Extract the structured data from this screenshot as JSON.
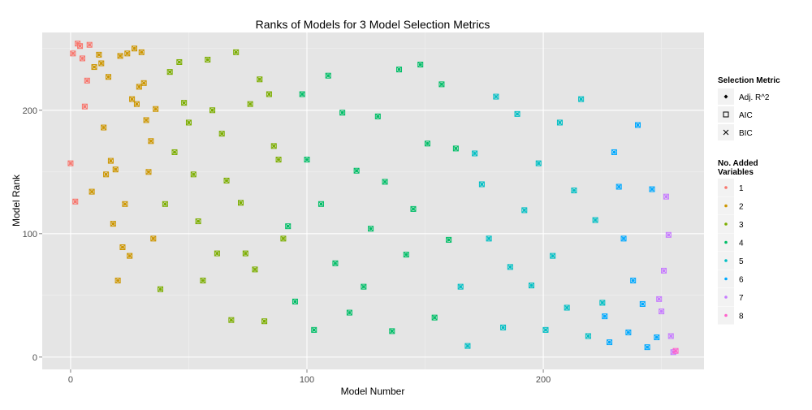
{
  "chart_data": {
    "type": "scatter",
    "title": "Ranks  of Models for 3 Model Selection Metrics",
    "xlabel": "Model Number",
    "ylabel": "Model Rank",
    "xlim": [
      -12,
      268
    ],
    "ylim": [
      -10,
      263
    ],
    "x_ticks": [
      0,
      100,
      200
    ],
    "y_ticks": [
      0,
      100,
      200
    ],
    "grid": true,
    "background": "#e5e5e5",
    "grid_color": "#ffffff",
    "legend_position": "right",
    "shape_legend": {
      "title": "Selection Metric",
      "items": [
        {
          "label": "Adj. R^2",
          "shape": "diamond"
        },
        {
          "label": "AIC",
          "shape": "square"
        },
        {
          "label": "BIC",
          "shape": "cross"
        }
      ]
    },
    "color_legend": {
      "title": "No. Added\nVariables",
      "items": [
        {
          "label": "1",
          "color": "#f8766d"
        },
        {
          "label": "2",
          "color": "#cd9600"
        },
        {
          "label": "3",
          "color": "#7cae00"
        },
        {
          "label": "4",
          "color": "#00be67"
        },
        {
          "label": "5",
          "color": "#00bfc4"
        },
        {
          "label": "6",
          "color": "#00a9ff"
        },
        {
          "label": "7",
          "color": "#c77cff"
        },
        {
          "label": "8",
          "color": "#ff61cc"
        }
      ]
    },
    "series": [
      {
        "group": "1",
        "x": [
          0,
          1,
          2,
          3,
          4,
          5,
          6,
          7,
          8
        ],
        "y": [
          157,
          246,
          126,
          254,
          252,
          242,
          203,
          224,
          253
        ]
      },
      {
        "group": "2",
        "x": [
          9,
          10,
          12,
          13,
          14,
          15,
          16,
          17,
          18,
          19,
          20,
          21,
          22,
          23,
          24,
          25,
          26,
          27,
          28,
          29,
          30,
          31,
          32,
          33,
          34,
          35,
          36
        ],
        "y": [
          134,
          235,
          245,
          238,
          186,
          148,
          227,
          159,
          108,
          152,
          62,
          244,
          89,
          124,
          246,
          82,
          209,
          250,
          205,
          219,
          247,
          222,
          192,
          150,
          175,
          96,
          201
        ]
      },
      {
        "group": "3",
        "x": [
          38,
          40,
          42,
          44,
          46,
          48,
          50,
          52,
          54,
          56,
          58,
          60,
          62,
          64,
          66,
          68,
          70,
          72,
          74,
          76,
          78,
          80,
          82,
          84,
          86,
          88,
          90
        ],
        "y": [
          55,
          124,
          231,
          166,
          239,
          206,
          190,
          148,
          110,
          62,
          241,
          200,
          84,
          181,
          143,
          30,
          247,
          125,
          84,
          205,
          71,
          225,
          29,
          213,
          171,
          160,
          96
        ]
      },
      {
        "group": "4",
        "x": [
          92,
          95,
          98,
          100,
          103,
          106,
          109,
          112,
          115,
          118,
          121,
          124,
          127,
          130,
          133,
          136,
          139,
          142,
          145,
          148,
          151,
          154,
          157,
          160,
          163
        ],
        "y": [
          106,
          45,
          213,
          160,
          22,
          124,
          228,
          76,
          198,
          36,
          151,
          57,
          104,
          195,
          142,
          21,
          233,
          83,
          120,
          237,
          173,
          32,
          221,
          95,
          169
        ]
      },
      {
        "group": "5",
        "x": [
          165,
          168,
          171,
          174,
          177,
          180,
          183,
          186,
          189,
          192,
          195,
          198,
          201,
          204,
          207,
          210,
          213,
          216,
          219,
          222,
          225
        ],
        "y": [
          57,
          9,
          165,
          140,
          96,
          211,
          24,
          73,
          197,
          119,
          58,
          157,
          22,
          82,
          190,
          40,
          135,
          209,
          17,
          111,
          44
        ]
      },
      {
        "group": "6",
        "x": [
          226,
          228,
          230,
          232,
          234,
          236,
          238,
          240,
          242,
          244,
          246,
          248
        ],
        "y": [
          33,
          12,
          166,
          138,
          96,
          20,
          62,
          188,
          43,
          8,
          136,
          16
        ]
      },
      {
        "group": "7",
        "x": [
          249,
          250,
          251,
          252,
          253,
          254,
          255
        ],
        "y": [
          47,
          37,
          70,
          130,
          99,
          17,
          4
        ]
      },
      {
        "group": "8",
        "x": [
          256
        ],
        "y": [
          5
        ]
      }
    ]
  }
}
